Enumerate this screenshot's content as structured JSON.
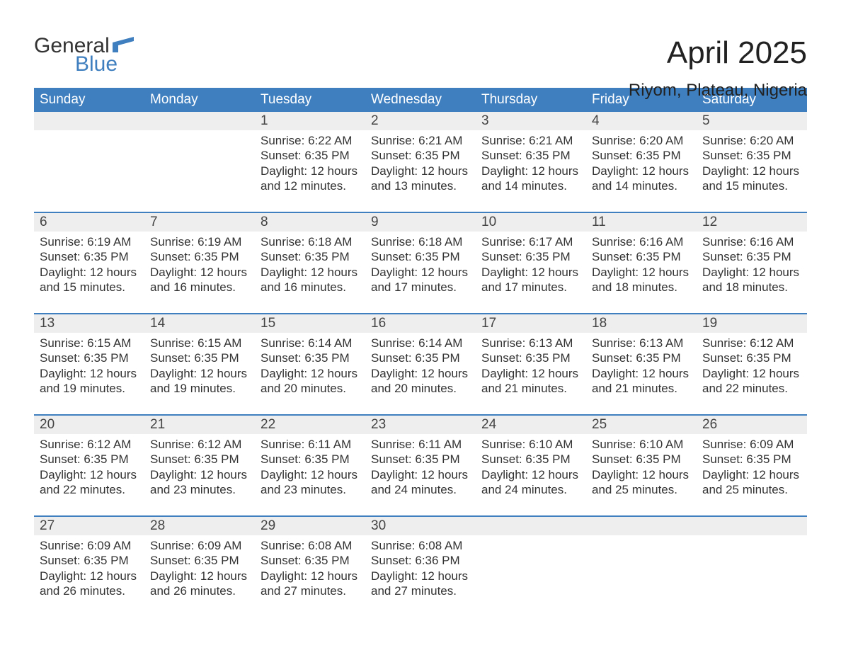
{
  "logo": {
    "word1": "General",
    "word2": "Blue",
    "word1_color": "#333333",
    "word2_color": "#3f7fbf",
    "icon_color": "#3f7fbf"
  },
  "title": "April 2025",
  "subtitle": "Riyom, Plateau, Nigeria",
  "colors": {
    "header_bg": "#3f7fbf",
    "header_text": "#ffffff",
    "daynum_bg": "#eeeeee",
    "week_separator": "#3f7fbf",
    "body_text": "#333333",
    "page_bg": "#ffffff"
  },
  "typography": {
    "title_fontsize": 44,
    "subtitle_fontsize": 24,
    "weekday_fontsize": 19,
    "daynum_fontsize": 19,
    "cell_fontsize": 17
  },
  "weekdays": [
    "Sunday",
    "Monday",
    "Tuesday",
    "Wednesday",
    "Thursday",
    "Friday",
    "Saturday"
  ],
  "weeks": [
    [
      null,
      null,
      {
        "n": "1",
        "sunrise": "6:22 AM",
        "sunset": "6:35 PM",
        "daylight": "12 hours and 12 minutes."
      },
      {
        "n": "2",
        "sunrise": "6:21 AM",
        "sunset": "6:35 PM",
        "daylight": "12 hours and 13 minutes."
      },
      {
        "n": "3",
        "sunrise": "6:21 AM",
        "sunset": "6:35 PM",
        "daylight": "12 hours and 14 minutes."
      },
      {
        "n": "4",
        "sunrise": "6:20 AM",
        "sunset": "6:35 PM",
        "daylight": "12 hours and 14 minutes."
      },
      {
        "n": "5",
        "sunrise": "6:20 AM",
        "sunset": "6:35 PM",
        "daylight": "12 hours and 15 minutes."
      }
    ],
    [
      {
        "n": "6",
        "sunrise": "6:19 AM",
        "sunset": "6:35 PM",
        "daylight": "12 hours and 15 minutes."
      },
      {
        "n": "7",
        "sunrise": "6:19 AM",
        "sunset": "6:35 PM",
        "daylight": "12 hours and 16 minutes."
      },
      {
        "n": "8",
        "sunrise": "6:18 AM",
        "sunset": "6:35 PM",
        "daylight": "12 hours and 16 minutes."
      },
      {
        "n": "9",
        "sunrise": "6:18 AM",
        "sunset": "6:35 PM",
        "daylight": "12 hours and 17 minutes."
      },
      {
        "n": "10",
        "sunrise": "6:17 AM",
        "sunset": "6:35 PM",
        "daylight": "12 hours and 17 minutes."
      },
      {
        "n": "11",
        "sunrise": "6:16 AM",
        "sunset": "6:35 PM",
        "daylight": "12 hours and 18 minutes."
      },
      {
        "n": "12",
        "sunrise": "6:16 AM",
        "sunset": "6:35 PM",
        "daylight": "12 hours and 18 minutes."
      }
    ],
    [
      {
        "n": "13",
        "sunrise": "6:15 AM",
        "sunset": "6:35 PM",
        "daylight": "12 hours and 19 minutes."
      },
      {
        "n": "14",
        "sunrise": "6:15 AM",
        "sunset": "6:35 PM",
        "daylight": "12 hours and 19 minutes."
      },
      {
        "n": "15",
        "sunrise": "6:14 AM",
        "sunset": "6:35 PM",
        "daylight": "12 hours and 20 minutes."
      },
      {
        "n": "16",
        "sunrise": "6:14 AM",
        "sunset": "6:35 PM",
        "daylight": "12 hours and 20 minutes."
      },
      {
        "n": "17",
        "sunrise": "6:13 AM",
        "sunset": "6:35 PM",
        "daylight": "12 hours and 21 minutes."
      },
      {
        "n": "18",
        "sunrise": "6:13 AM",
        "sunset": "6:35 PM",
        "daylight": "12 hours and 21 minutes."
      },
      {
        "n": "19",
        "sunrise": "6:12 AM",
        "sunset": "6:35 PM",
        "daylight": "12 hours and 22 minutes."
      }
    ],
    [
      {
        "n": "20",
        "sunrise": "6:12 AM",
        "sunset": "6:35 PM",
        "daylight": "12 hours and 22 minutes."
      },
      {
        "n": "21",
        "sunrise": "6:12 AM",
        "sunset": "6:35 PM",
        "daylight": "12 hours and 23 minutes."
      },
      {
        "n": "22",
        "sunrise": "6:11 AM",
        "sunset": "6:35 PM",
        "daylight": "12 hours and 23 minutes."
      },
      {
        "n": "23",
        "sunrise": "6:11 AM",
        "sunset": "6:35 PM",
        "daylight": "12 hours and 24 minutes."
      },
      {
        "n": "24",
        "sunrise": "6:10 AM",
        "sunset": "6:35 PM",
        "daylight": "12 hours and 24 minutes."
      },
      {
        "n": "25",
        "sunrise": "6:10 AM",
        "sunset": "6:35 PM",
        "daylight": "12 hours and 25 minutes."
      },
      {
        "n": "26",
        "sunrise": "6:09 AM",
        "sunset": "6:35 PM",
        "daylight": "12 hours and 25 minutes."
      }
    ],
    [
      {
        "n": "27",
        "sunrise": "6:09 AM",
        "sunset": "6:35 PM",
        "daylight": "12 hours and 26 minutes."
      },
      {
        "n": "28",
        "sunrise": "6:09 AM",
        "sunset": "6:35 PM",
        "daylight": "12 hours and 26 minutes."
      },
      {
        "n": "29",
        "sunrise": "6:08 AM",
        "sunset": "6:35 PM",
        "daylight": "12 hours and 27 minutes."
      },
      {
        "n": "30",
        "sunrise": "6:08 AM",
        "sunset": "6:36 PM",
        "daylight": "12 hours and 27 minutes."
      },
      null,
      null,
      null
    ]
  ],
  "labels": {
    "sunrise": "Sunrise: ",
    "sunset": "Sunset: ",
    "daylight": "Daylight: "
  }
}
